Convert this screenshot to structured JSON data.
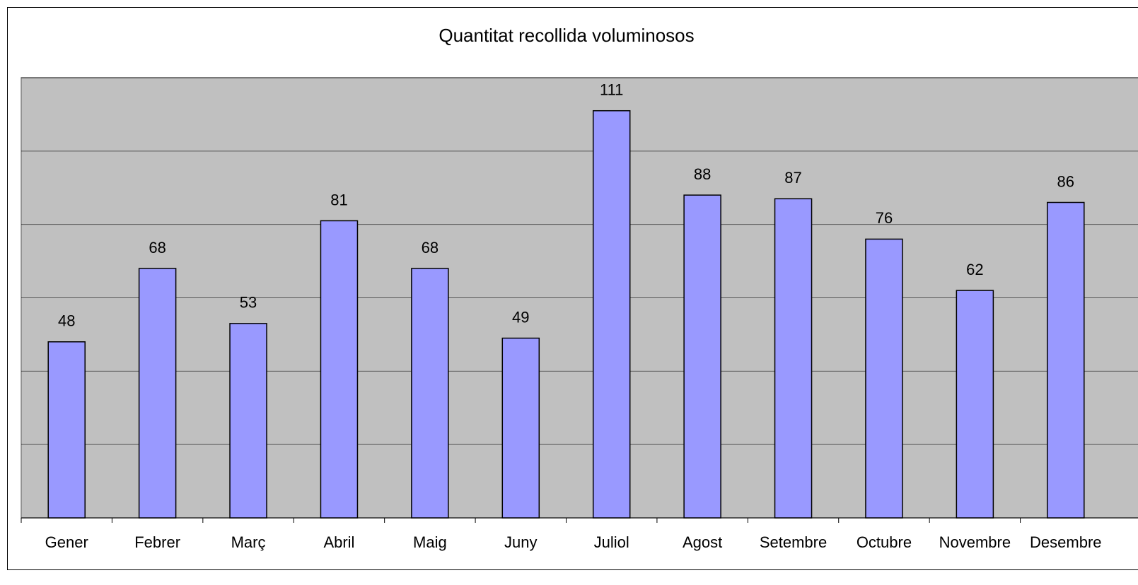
{
  "chart_data": {
    "type": "bar",
    "title": "Quantitat recollida voluminosos",
    "categories": [
      "Gener",
      "Febrer",
      "Març",
      "Abril",
      "Maig",
      "Juny",
      "Juliol",
      "Agost",
      "Setembre",
      "Octubre",
      "Novembre",
      "Desembre"
    ],
    "values": [
      48,
      68,
      53,
      81,
      68,
      49,
      111,
      88,
      87,
      76,
      62,
      86
    ],
    "color": "#9999ff",
    "ylim": [
      0,
      120
    ],
    "yticks": [
      0,
      20,
      40,
      60,
      80,
      100,
      120
    ],
    "grid": true
  }
}
